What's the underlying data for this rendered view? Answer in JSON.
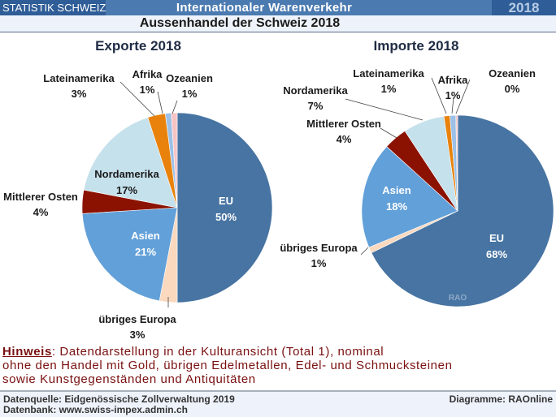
{
  "header": {
    "brand": "STATISTIK SCHWEIZ",
    "title": "Internationaler Warenverkehr",
    "year": "2018",
    "subtitle": "Aussenhandel der Schweiz 2018"
  },
  "colors": {
    "EU": "#4774a2",
    "übriges Europa": "#fad9bf",
    "Asien": "#62a0d9",
    "Mittlerer Osten": "#8b1200",
    "Nordamerika": "#c5e1ec",
    "Lateinamerika": "#e8820c",
    "Afrika": "#9cc0e6",
    "Ozeanien": "#f7c4c4"
  },
  "chart_data": [
    {
      "type": "pie",
      "title": "Exporte 2018",
      "categories": [
        "EU",
        "übriges Europa",
        "Asien",
        "Mittlerer Osten",
        "Nordamerika",
        "Lateinamerika",
        "Afrika",
        "Ozeanien"
      ],
      "values": [
        50,
        3,
        21,
        4,
        17,
        3,
        1,
        1
      ],
      "labels": [
        "50%",
        "3%",
        "21%",
        "4%",
        "17%",
        "3%",
        "1%",
        "1%"
      ],
      "start": "12 o'clock, clockwise"
    },
    {
      "type": "pie",
      "title": "Importe 2018",
      "categories": [
        "EU",
        "übriges Europa",
        "Asien",
        "Mittlerer Osten",
        "Nordamerika",
        "Lateinamerika",
        "Afrika",
        "Ozeanien"
      ],
      "values": [
        68,
        1,
        18,
        4,
        7,
        1,
        1,
        0.3
      ],
      "labels": [
        "68%",
        "1%",
        "18%",
        "4%",
        "7%",
        "1%",
        "1%",
        "0%"
      ],
      "start": "12 o'clock, clockwise",
      "watermark": "RAO"
    }
  ],
  "note": {
    "prefix": "Hinweis",
    "line1": ": Datendarstellung in der Kulturansicht (Total 1), nominal",
    "line2": "ohne den Handel mit Gold, übrigen Edelmetallen, Edel- und Schmucksteinen",
    "line3": "sowie Kunstgegenständen und Antiquitäten"
  },
  "footer": {
    "source": "Datenquelle: Eidgenössische Zollverwaltung 2019",
    "database": "Datenbank: www.swiss-impex.admin.ch",
    "credit": "Diagramme: RAOnline"
  }
}
